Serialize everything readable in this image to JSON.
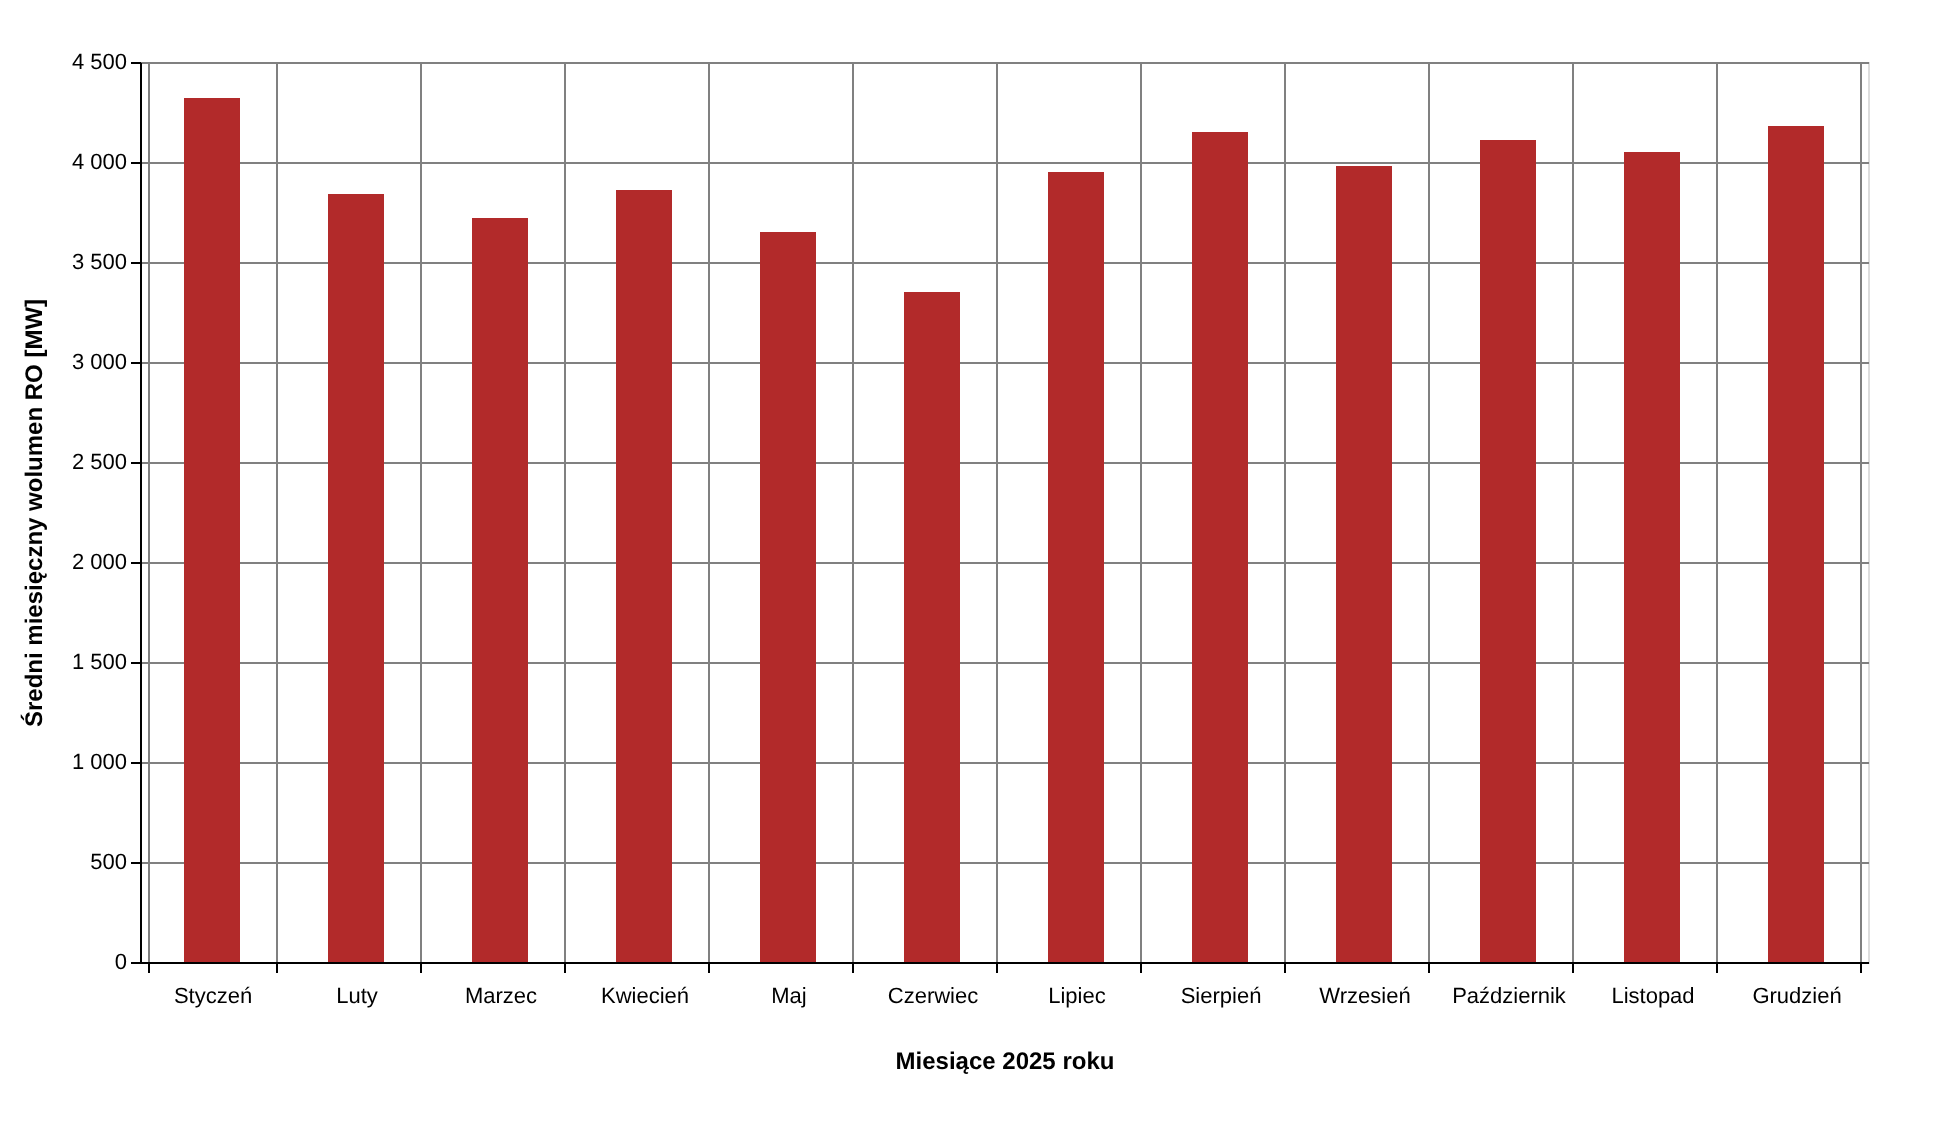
{
  "chart_data": {
    "type": "bar",
    "xlabel": "Miesiące 2025  roku",
    "ylabel": "Średni miesięczny wolumen RO [MW]",
    "categories": [
      "Styczeń",
      "Luty",
      "Marzec",
      "Kwiecień",
      "Maj",
      "Czerwiec",
      "Lipiec",
      "Sierpień",
      "Wrzesień",
      "Październik",
      "Listopad",
      "Grudzień"
    ],
    "values": [
      4320,
      3840,
      3720,
      3860,
      3650,
      3350,
      3950,
      4150,
      3980,
      4110,
      4050,
      4180
    ],
    "color": "#b22a2a",
    "ylim": [
      0,
      4500
    ],
    "yticks": [
      0,
      500,
      {
        "value": 1000,
        "label": "1 000"
      },
      {
        "value": 1500,
        "label": "1 500"
      },
      {
        "value": 2000,
        "label": "2 000"
      },
      {
        "value": 2500,
        "label": "2 500"
      },
      {
        "value": 3000,
        "label": "3 000"
      },
      {
        "value": 3500,
        "label": "3 500"
      },
      {
        "value": 4000,
        "label": "4 000"
      },
      {
        "value": 4500,
        "label": "4 500"
      }
    ],
    "grid": true
  }
}
